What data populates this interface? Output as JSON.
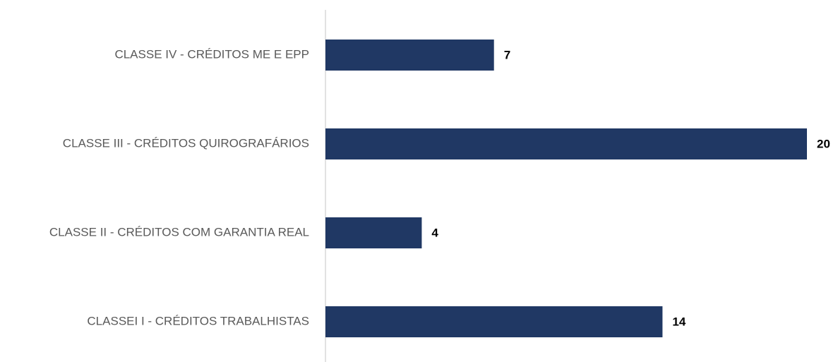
{
  "chart_data": {
    "type": "bar",
    "orientation": "horizontal",
    "categories": [
      "CLASSE IV - CRÉDITOS ME E EPP",
      "CLASSE III - CRÉDITOS QUIROGRAFÁRIOS",
      "CLASSE II - CRÉDITOS COM GARANTIA REAL",
      "CLASSEI I - CRÉDITOS TRABALHISTAS"
    ],
    "values": [
      7,
      20,
      4,
      14
    ],
    "color": "#203864",
    "xlim": [
      0,
      20
    ]
  }
}
